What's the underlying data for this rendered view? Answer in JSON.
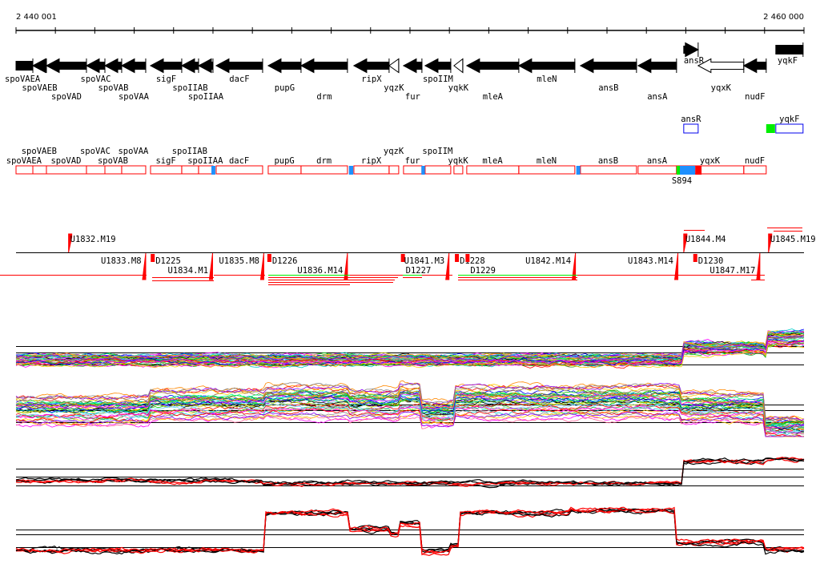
{
  "axis": {
    "start_label": "2 440 001",
    "end_label": "2 460 000",
    "start": 2440001,
    "end": 2460000,
    "tick_step": 1000
  },
  "genes": [
    {
      "name": "spoVAEA",
      "start": 2440001,
      "end": 2440428,
      "strand": "-",
      "row": 0,
      "style": "box"
    },
    {
      "name": "spoVAEB",
      "start": 2440428,
      "end": 2440773,
      "strand": "-",
      "row": 1
    },
    {
      "name": "spoVAD",
      "start": 2440773,
      "end": 2441789,
      "strand": "-",
      "row": 2
    },
    {
      "name": "spoVAC",
      "start": 2441789,
      "end": 2442257,
      "strand": "-",
      "row": 0
    },
    {
      "name": "spoVAB",
      "start": 2442257,
      "end": 2442683,
      "strand": "-",
      "row": 1
    },
    {
      "name": "spoVAA",
      "start": 2442683,
      "end": 2443293,
      "strand": "-",
      "row": 2
    },
    {
      "name": "sigF",
      "start": 2443415,
      "end": 2444207,
      "strand": "-",
      "row": 0
    },
    {
      "name": "spoIIAB",
      "start": 2444207,
      "end": 2444634,
      "strand": "-",
      "row": 1
    },
    {
      "name": "spoIIAA",
      "start": 2444634,
      "end": 2445000,
      "strand": "-",
      "row": 2
    },
    {
      "name": "dacF",
      "start": 2445081,
      "end": 2446260,
      "strand": "-",
      "row": 0
    },
    {
      "name": "pupG",
      "start": 2446402,
      "end": 2447235,
      "strand": "-",
      "row": 1
    },
    {
      "name": "drm",
      "start": 2447235,
      "end": 2448413,
      "strand": "-",
      "row": 2
    },
    {
      "name": "ripX",
      "start": 2448576,
      "end": 2449470,
      "strand": "-",
      "row": 0
    },
    {
      "name": "yqzK",
      "start": 2449470,
      "end": 2449714,
      "strand": "-",
      "row": 1,
      "style": "open"
    },
    {
      "name": "fur",
      "start": 2449836,
      "end": 2450303,
      "strand": "-",
      "row": 2
    },
    {
      "name": "spoIIM",
      "start": 2450385,
      "end": 2451035,
      "strand": "-",
      "row": 0
    },
    {
      "name": "yqkK",
      "start": 2451116,
      "end": 2451340,
      "strand": "-",
      "row": 1,
      "style": "open"
    },
    {
      "name": "mleA",
      "start": 2451441,
      "end": 2452762,
      "strand": "-",
      "row": 2
    },
    {
      "name": "mleN",
      "start": 2452762,
      "end": 2454184,
      "strand": "-",
      "row": 0
    },
    {
      "name": "ansB",
      "start": 2454327,
      "end": 2455749,
      "strand": "-",
      "row": 1
    },
    {
      "name": "ansA",
      "start": 2455790,
      "end": 2456765,
      "strand": "-",
      "row": 2
    },
    {
      "name": "ansR",
      "start": 2456948,
      "end": 2457314,
      "strand": "+",
      "row": -1
    },
    {
      "name": "yqxK",
      "start": 2457314,
      "end": 2458472,
      "strand": "-",
      "row": 1,
      "style": "open"
    },
    {
      "name": "nudF",
      "start": 2458472,
      "end": 2459041,
      "strand": "-",
      "row": 2
    },
    {
      "name": "yqkF",
      "start": 2459285,
      "end": 2459976,
      "strand": "+",
      "row": -1,
      "style": "box"
    }
  ],
  "forward_transcripts": [
    {
      "name": "ansR",
      "start": 2456948,
      "end": 2457314
    },
    {
      "name": "yqkF",
      "start": 2459285,
      "end": 2459976
    }
  ],
  "forward_sites": [
    {
      "start": 2459041,
      "end": 2459265,
      "color": "#00ee00"
    }
  ],
  "reverse_units": [
    {
      "name": "spoVAEA",
      "start": 2440001,
      "end": 2440428
    },
    {
      "name": "spoVAEB",
      "start": 2440428,
      "end": 2440773
    },
    {
      "name": "spoVAD",
      "start": 2440773,
      "end": 2441789
    },
    {
      "name": "spoVAC",
      "start": 2441789,
      "end": 2442257
    },
    {
      "name": "spoVAB",
      "start": 2442257,
      "end": 2442683
    },
    {
      "name": "spoVAA",
      "start": 2442683,
      "end": 2443293
    },
    {
      "name": "sigF",
      "start": 2443415,
      "end": 2444207
    },
    {
      "name": "spoIIAB",
      "start": 2444207,
      "end": 2444634
    },
    {
      "name": "spoIIAA",
      "start": 2444634,
      "end": 2445000
    },
    {
      "name": "dacF",
      "start": 2445081,
      "end": 2446260
    },
    {
      "name": "pupG",
      "start": 2446402,
      "end": 2447235
    },
    {
      "name": "drm",
      "start": 2447235,
      "end": 2448413
    },
    {
      "name": "ripX",
      "start": 2448576,
      "end": 2449470
    },
    {
      "name": "yqzK",
      "start": 2449470,
      "end": 2449714
    },
    {
      "name": "fur",
      "start": 2449836,
      "end": 2450303
    },
    {
      "name": "spoIIM",
      "start": 2450385,
      "end": 2451035
    },
    {
      "name": "yqkK",
      "start": 2451116,
      "end": 2451340
    },
    {
      "name": "mleA",
      "start": 2451441,
      "end": 2452762
    },
    {
      "name": "mleN",
      "start": 2452762,
      "end": 2454184
    },
    {
      "name": "ansB",
      "start": 2454327,
      "end": 2455749
    },
    {
      "name": "ansA",
      "start": 2455790,
      "end": 2456765
    },
    {
      "name": "yqxK",
      "start": 2456765,
      "end": 2458472
    },
    {
      "name": "nudF",
      "start": 2458472,
      "end": 2459041
    }
  ],
  "reverse_sites": [
    {
      "start": 2444960,
      "end": 2445060,
      "color": "#1e90ff"
    },
    {
      "start": 2448450,
      "end": 2448560,
      "color": "#1e90ff"
    },
    {
      "start": 2450290,
      "end": 2450380,
      "color": "#1e90ff"
    },
    {
      "start": 2454220,
      "end": 2454320,
      "color": "#1e90ff"
    },
    {
      "start": 2456765,
      "end": 2456850,
      "color": "#00ee00"
    },
    {
      "start": 2456850,
      "end": 2457240,
      "color": "#1e90ff"
    },
    {
      "start": 2457240,
      "end": 2457400,
      "color": "#ff0000"
    }
  ],
  "site_label": {
    "text": "S894",
    "pos": 2456900
  },
  "shifts_upper": [
    {
      "label": "U1832.M19",
      "pos": 2441335
    },
    {
      "label": "U1844.M4",
      "pos": 2456948
    },
    {
      "label": "U1845.M19",
      "pos": 2459100
    }
  ],
  "shifts_lower": [
    {
      "label": "U1833.M8",
      "pos": 2443293,
      "type": "up"
    },
    {
      "label": "D1225",
      "pos": 2443420,
      "type": "down"
    },
    {
      "label": "U1834.M1",
      "pos": 2444990,
      "type": "up"
    },
    {
      "label": "U1835.M8",
      "pos": 2446290,
      "type": "up"
    },
    {
      "label": "D1226",
      "pos": 2446380,
      "type": "down"
    },
    {
      "label": "U1836.M14",
      "pos": 2448413,
      "type": "up"
    },
    {
      "label": "D1227",
      "pos": 2449770,
      "type": "down"
    },
    {
      "label": "U1841.M3",
      "pos": 2450990,
      "type": "up"
    },
    {
      "label": "D1228",
      "pos": 2451140,
      "type": "down"
    },
    {
      "label": "D1229",
      "pos": 2451410,
      "type": "down"
    },
    {
      "label": "U1842.M14",
      "pos": 2454200,
      "type": "up"
    },
    {
      "label": "U1843.M14",
      "pos": 2456800,
      "type": "up"
    },
    {
      "label": "D1230",
      "pos": 2457190,
      "type": "down"
    },
    {
      "label": "U1847.M17",
      "pos": 2458880,
      "type": "up"
    }
  ],
  "expression_profiles": [
    {
      "name": "panel-1",
      "segments": [
        [
          2440001,
          0.35
        ],
        [
          2456800,
          0.35
        ],
        [
          2456948,
          0.6
        ],
        [
          2459000,
          0.55
        ],
        [
          2459030,
          0.8
        ],
        [
          2460000,
          0.8
        ]
      ]
    },
    {
      "name": "panel-2",
      "segments": [
        [
          2440001,
          0.45
        ],
        [
          2443380,
          0.55
        ],
        [
          2446330,
          0.6
        ],
        [
          2448420,
          0.55
        ],
        [
          2449750,
          0.62
        ],
        [
          2450250,
          0.4
        ],
        [
          2451100,
          0.6
        ],
        [
          2456830,
          0.5
        ],
        [
          2459000,
          0.15
        ],
        [
          2460000,
          0.15
        ]
      ]
    },
    {
      "name": "panel-3",
      "segments": [
        [
          2440001,
          0.35
        ],
        [
          2446260,
          0.3
        ],
        [
          2456900,
          0.8
        ],
        [
          2459000,
          0.85
        ],
        [
          2460000,
          0.85
        ]
      ]
    },
    {
      "name": "panel-4",
      "segments": [
        [
          2440001,
          0.15
        ],
        [
          2446330,
          0.85
        ],
        [
          2448420,
          0.55
        ],
        [
          2449470,
          0.45
        ],
        [
          2449730,
          0.65
        ],
        [
          2450250,
          0.15
        ],
        [
          2451000,
          0.25
        ],
        [
          2451240,
          0.85
        ],
        [
          2454080,
          0.9
        ],
        [
          2456730,
          0.3
        ],
        [
          2459000,
          0.15
        ],
        [
          2460000,
          0.15
        ]
      ]
    }
  ]
}
